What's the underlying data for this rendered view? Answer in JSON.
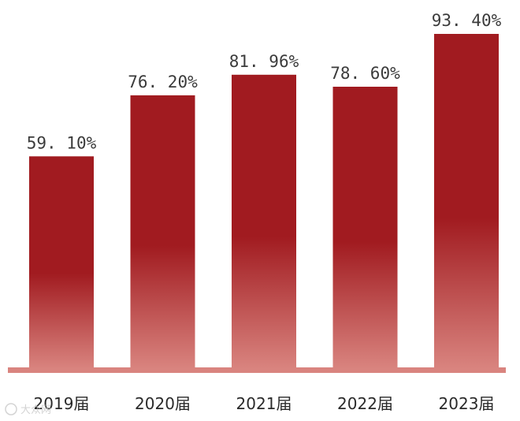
{
  "chart_data": {
    "type": "bar",
    "categories": [
      "2019届",
      "2020届",
      "2021届",
      "2022届",
      "2023届"
    ],
    "values": [
      59.1,
      76.2,
      81.96,
      78.6,
      93.4
    ],
    "value_labels": [
      "59. 10%",
      "76. 20%",
      "81. 96%",
      "78. 60%",
      "93. 40%"
    ],
    "unit": "%",
    "ylim": [
      0,
      100
    ],
    "title": "",
    "xlabel": "",
    "ylabel": "",
    "grid": false,
    "legend": "none",
    "colors": {
      "bar_top": "#a11b20",
      "bar_bottom": "#d9847f",
      "baseline": "#d9847f"
    }
  },
  "watermark": {
    "text": "大众网"
  }
}
